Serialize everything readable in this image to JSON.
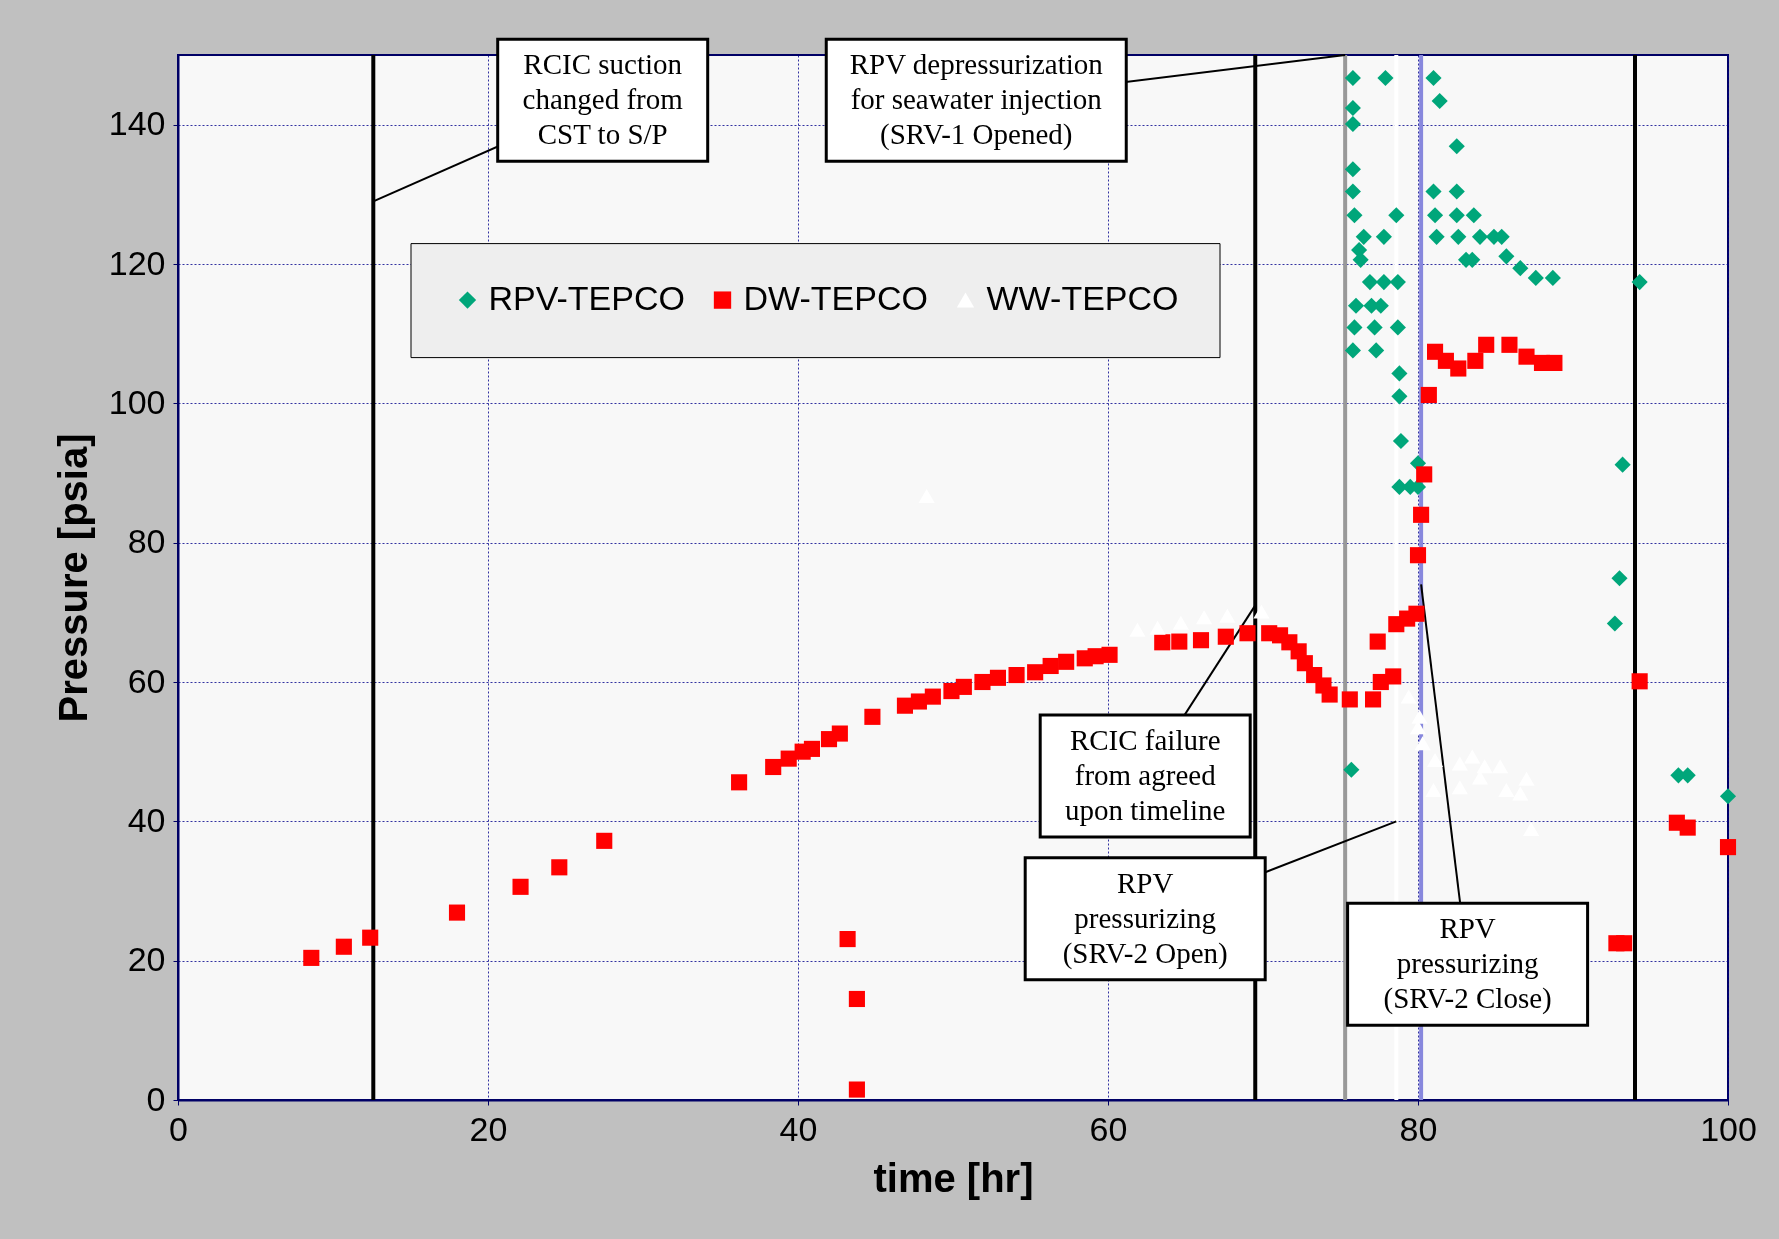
{
  "chart_data": {
    "type": "scatter",
    "xlabel": "time [hr]",
    "ylabel": "Pressure [psia]",
    "xlim": [
      0,
      100
    ],
    "xticks": [
      0,
      20,
      40,
      60,
      80,
      100
    ],
    "ylim": [
      0,
      150
    ],
    "yticks": [
      0,
      20,
      40,
      60,
      80,
      100,
      120,
      140
    ],
    "grid": true,
    "legend": "top",
    "series": [
      {
        "name": "RPV-TEPCO",
        "color": "#00a67a",
        "marker": "diamond",
        "x": [
          75.8,
          77.9,
          81.0,
          81.4,
          75.8,
          75.8,
          82.5,
          75.8,
          75.8,
          81.0,
          82.5,
          75.9,
          78.6,
          81.1,
          82.5,
          83.6,
          76.5,
          77.8,
          81.2,
          82.6,
          84.0,
          84.9,
          85.4,
          76.2,
          76.3,
          83.1,
          83.5,
          85.7,
          86.6,
          87.6,
          88.7,
          94.3,
          76.9,
          77.8,
          78.7,
          76.0,
          77.0,
          77.6,
          75.9,
          77.2,
          78.7,
          75.8,
          77.3,
          78.8,
          78.8,
          78.9,
          80.0,
          78.8,
          79.5,
          80.0,
          93.2,
          93.0,
          92.7,
          75.7,
          96.8,
          97.4,
          100.0
        ],
        "values": [
          146.7,
          146.7,
          146.7,
          143.4,
          142.4,
          140.1,
          136.9,
          133.6,
          130.4,
          130.4,
          130.4,
          127.0,
          127.0,
          127.0,
          127.0,
          127.0,
          123.9,
          123.9,
          123.9,
          123.9,
          123.9,
          123.9,
          123.9,
          122.0,
          120.6,
          120.6,
          120.6,
          121.1,
          119.4,
          118.0,
          118.0,
          117.4,
          117.4,
          117.4,
          117.4,
          114.0,
          114.0,
          114.0,
          110.9,
          110.9,
          110.9,
          107.6,
          107.6,
          104.3,
          101.0,
          94.6,
          91.4,
          88.0,
          88.0,
          88.0,
          91.2,
          74.9,
          68.4,
          47.4,
          46.6,
          46.6,
          43.6
        ]
      },
      {
        "name": "DW-TEPCO",
        "color": "#ff0000",
        "marker": "square",
        "x": [
          8.6,
          10.7,
          12.4,
          18.0,
          22.1,
          24.6,
          27.5,
          36.2,
          38.4,
          39.4,
          40.3,
          40.9,
          42.0,
          42.7,
          43.2,
          43.8,
          43.8,
          44.8,
          46.9,
          47.8,
          48.7,
          49.9,
          50.7,
          51.9,
          52.9,
          54.1,
          55.3,
          56.3,
          57.3,
          58.5,
          59.2,
          60.1,
          63.5,
          64.6,
          66.0,
          67.6,
          69.0,
          70.4,
          71.1,
          71.7,
          72.3,
          72.7,
          73.3,
          73.9,
          74.3,
          75.6,
          77.1,
          77.4,
          77.6,
          78.4,
          78.6,
          79.3,
          79.9,
          80.0,
          80.2,
          80.4,
          80.7,
          81.1,
          81.8,
          82.6,
          83.7,
          84.4,
          85.9,
          87.0,
          88.0,
          88.8,
          92.8,
          93.3,
          94.3,
          96.7,
          97.4,
          100.0
        ],
        "values": [
          20.4,
          22.0,
          23.3,
          26.9,
          30.6,
          33.4,
          37.2,
          45.6,
          47.8,
          49.0,
          50.0,
          50.4,
          51.8,
          52.6,
          23.1,
          14.5,
          1.5,
          55.0,
          56.6,
          57.2,
          57.9,
          58.7,
          59.3,
          60.0,
          60.6,
          61.0,
          61.4,
          62.3,
          62.9,
          63.4,
          63.7,
          63.9,
          65.7,
          65.8,
          66.0,
          66.5,
          67.0,
          67.0,
          66.7,
          65.7,
          64.4,
          62.7,
          61.0,
          59.5,
          58.2,
          57.5,
          57.5,
          65.8,
          60.0,
          60.8,
          68.3,
          69.1,
          69.8,
          78.2,
          84.0,
          89.8,
          101.2,
          107.4,
          106.1,
          105.0,
          106.1,
          108.4,
          108.4,
          106.7,
          105.8,
          105.8,
          22.5,
          22.5,
          60.1,
          39.8,
          39.1,
          36.3
        ]
      },
      {
        "name": "WW-TEPCO",
        "color": "#ffffff",
        "marker": "triangle",
        "x": [
          48.3,
          61.9,
          63.2,
          64.7,
          66.2,
          67.7,
          69.9,
          79.4,
          80.1,
          80.0,
          80.3,
          81.1,
          82.7,
          83.5,
          84.3,
          85.3,
          81.0,
          82.7,
          84.0,
          85.7,
          87.0,
          86.6,
          87.3
        ],
        "values": [
          86.7,
          67.5,
          67.8,
          68.5,
          69.3,
          69.5,
          70.1,
          57.9,
          55.0,
          53.5,
          51.2,
          48.8,
          48.3,
          49.3,
          47.9,
          47.9,
          44.5,
          44.9,
          46.3,
          44.5,
          46.1,
          44.0,
          38.9
        ]
      }
    ],
    "ref_lines": [
      {
        "axis": "x",
        "value": 12.6,
        "color": "#000000"
      },
      {
        "axis": "x",
        "value": 69.5,
        "color": "#000000"
      },
      {
        "axis": "x",
        "value": 75.3,
        "color": "#999999"
      },
      {
        "axis": "x",
        "value": 78.6,
        "color": "#ffffff"
      },
      {
        "axis": "x",
        "value": 80.2,
        "color": "#8888dd"
      },
      {
        "axis": "x",
        "value": 94.0,
        "color": "#000000"
      }
    ],
    "annotations": [
      {
        "text": "RCIC suction\nchanged from\nCST to S/P",
        "x": 12.6,
        "y": 129
      },
      {
        "text": "RPV depressurization\nfor seawater injection\n(SRV-1 Opened)",
        "x": 75.3,
        "y": 150
      },
      {
        "text": "RCIC failure\nfrom agreed\nupon timeline",
        "x": 69.5,
        "y": 71
      },
      {
        "text": "RPV\npressurizing\n(SRV-2 Open)",
        "x": 78.6,
        "y": 40
      },
      {
        "text": "RPV\npressurizing\n(SRV-2 Close)",
        "x": 80.2,
        "y": 74
      }
    ]
  }
}
